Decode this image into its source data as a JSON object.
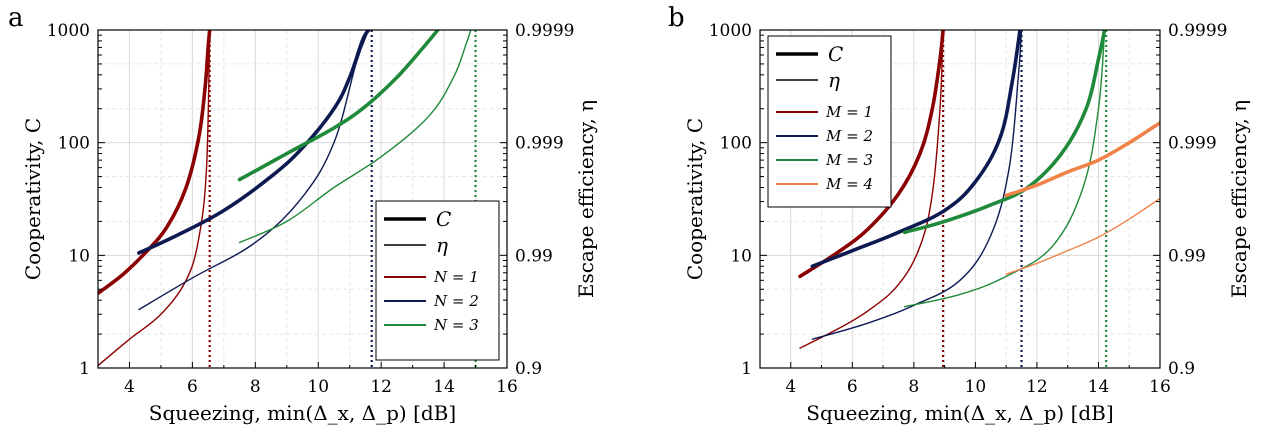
{
  "colors": {
    "red": "#8b0000",
    "navy": "#0d1a52",
    "green": "#1f8a3a",
    "orange": "#ef8348"
  },
  "chart_data": [
    {
      "type": "line",
      "panel_label": "a",
      "xlabel": "Squeezing, min(Δ_x, Δ_p) [dB]",
      "ylabel": "Cooperativity, C",
      "ylabel_right": "Escape efficiency, η",
      "xlim": [
        3,
        16
      ],
      "ylim": [
        1,
        1000
      ],
      "yscale": "log",
      "x_ticks": [
        "4",
        "6",
        "8",
        "10",
        "12",
        "14",
        "16"
      ],
      "y_ticks": [
        "1",
        "10",
        "100",
        "1000"
      ],
      "y_ticks_right": [
        "0.9",
        "0.99",
        "0.999",
        "0.9999"
      ],
      "grid": true,
      "legend_position": "lower-right",
      "legend": {
        "style_entries": [
          {
            "label": "C",
            "style": "thick"
          },
          {
            "label": "η",
            "style": "thin"
          }
        ],
        "color_entries": [
          {
            "label": "N = 1",
            "color": "red"
          },
          {
            "label": "N = 2",
            "color": "navy"
          },
          {
            "label": "N = 3",
            "color": "green"
          }
        ]
      },
      "series": [
        {
          "name": "C, N = 1",
          "color": "red",
          "style": "thick",
          "x": [
            3.0,
            3.8,
            4.5,
            5.2,
            5.8,
            6.2,
            6.4,
            6.5,
            6.55
          ],
          "y": [
            4.6,
            6.8,
            10.5,
            18,
            40,
            110,
            300,
            700,
            1000
          ]
        },
        {
          "name": "η, N = 1",
          "color": "red",
          "style": "thin",
          "x": [
            3.0,
            4.0,
            5.0,
            5.8,
            6.2,
            6.45,
            6.55
          ],
          "y": [
            1.05,
            1.8,
            3.0,
            6.0,
            14,
            60,
            1000
          ]
        },
        {
          "name": "C, N = 2",
          "color": "navy",
          "style": "thick",
          "x": [
            4.3,
            5.5,
            7.0,
            8.5,
            9.5,
            10.5,
            11.0,
            11.4,
            11.6
          ],
          "y": [
            10.5,
            15,
            25,
            50,
            90,
            200,
            380,
            800,
            1000
          ]
        },
        {
          "name": "η, N = 2",
          "color": "navy",
          "style": "thin",
          "x": [
            4.3,
            6.0,
            8.0,
            9.5,
            10.5,
            11.2,
            11.6
          ],
          "y": [
            3.3,
            6.3,
            13,
            33,
            100,
            500,
            1000
          ]
        },
        {
          "name": "C, N = 3",
          "color": "green",
          "style": "thick",
          "x": [
            7.5,
            9.0,
            10.5,
            11.5,
            12.5,
            13.3,
            13.8
          ],
          "y": [
            47,
            80,
            135,
            210,
            380,
            680,
            1000
          ]
        },
        {
          "name": "η, N = 3",
          "color": "green",
          "style": "thin",
          "x": [
            7.5,
            9.0,
            10.5,
            12.0,
            13.5,
            14.3,
            14.7,
            14.85
          ],
          "y": [
            13,
            20,
            40,
            75,
            170,
            380,
            750,
            1000
          ]
        }
      ],
      "vertical_lines": [
        {
          "x": 6.55,
          "color": "red"
        },
        {
          "x": 11.7,
          "color": "navy"
        },
        {
          "x": 15.0,
          "color": "green"
        }
      ]
    },
    {
      "type": "line",
      "panel_label": "b",
      "xlabel": "Squeezing, min(Δ_x, Δ_p) [dB]",
      "ylabel": "Cooperativity, C",
      "ylabel_right": "Escape efficiency, η",
      "xlim": [
        3,
        16
      ],
      "ylim": [
        1,
        1000
      ],
      "yscale": "log",
      "x_ticks": [
        "4",
        "6",
        "8",
        "10",
        "12",
        "14",
        "16"
      ],
      "y_ticks": [
        "1",
        "10",
        "100",
        "1000"
      ],
      "y_ticks_right": [
        "0.9",
        "0.99",
        "0.999",
        "0.9999"
      ],
      "grid": true,
      "legend_position": "upper-left",
      "legend": {
        "style_entries": [
          {
            "label": "C",
            "style": "thick"
          },
          {
            "label": "η",
            "style": "thin"
          }
        ],
        "color_entries": [
          {
            "label": "M = 1",
            "color": "red"
          },
          {
            "label": "M = 2",
            "color": "navy"
          },
          {
            "label": "M = 3",
            "color": "green"
          },
          {
            "label": "M = 4",
            "color": "orange"
          }
        ]
      },
      "series": [
        {
          "name": "C, M = 1",
          "color": "red",
          "style": "thick",
          "x": [
            4.3,
            5.5,
            6.5,
            7.5,
            8.2,
            8.6,
            8.85,
            8.95
          ],
          "y": [
            6.5,
            10.5,
            17,
            35,
            80,
            200,
            550,
            1000
          ]
        },
        {
          "name": "η, M = 1",
          "color": "red",
          "style": "thin",
          "x": [
            4.3,
            5.5,
            6.5,
            7.5,
            8.2,
            8.6,
            8.85,
            8.95
          ],
          "y": [
            1.5,
            2.2,
            3.2,
            5.5,
            12,
            35,
            200,
            1000
          ]
        },
        {
          "name": "C, M = 2",
          "color": "navy",
          "style": "thick",
          "x": [
            4.7,
            6.0,
            7.5,
            9.0,
            10.0,
            10.8,
            11.2,
            11.45
          ],
          "y": [
            8,
            11,
            16,
            25,
            45,
            110,
            350,
            1000
          ]
        },
        {
          "name": "η, M = 2",
          "color": "navy",
          "style": "thin",
          "x": [
            4.7,
            6.5,
            8.0,
            9.5,
            10.5,
            11.1,
            11.4,
            11.5
          ],
          "y": [
            1.8,
            2.5,
            3.6,
            6.0,
            15,
            60,
            400,
            1000
          ]
        },
        {
          "name": "C, M = 3",
          "color": "green",
          "style": "thick",
          "x": [
            7.7,
            9.0,
            10.5,
            11.7,
            12.8,
            13.6,
            14.0,
            14.2
          ],
          "y": [
            16,
            20,
            28,
            40,
            80,
            200,
            550,
            1000
          ]
        },
        {
          "name": "η, M = 3",
          "color": "green",
          "style": "thin",
          "x": [
            7.7,
            9.5,
            11.0,
            12.5,
            13.5,
            14.0,
            14.2
          ],
          "y": [
            3.5,
            4.5,
            6.5,
            12,
            40,
            200,
            1000
          ]
        },
        {
          "name": "C, M = 4",
          "color": "orange",
          "style": "thick",
          "x": [
            11.0,
            12.0,
            13.0,
            14.0,
            15.0,
            16.0
          ],
          "y": [
            34,
            42,
            55,
            70,
            100,
            150
          ]
        },
        {
          "name": "η, M = 4",
          "color": "orange",
          "style": "thin",
          "x": [
            11.0,
            12.0,
            13.0,
            14.0,
            15.0,
            16.0
          ],
          "y": [
            6.8,
            8.5,
            11,
            14.5,
            21,
            32
          ]
        }
      ],
      "vertical_lines": [
        {
          "x": 8.95,
          "color": "red"
        },
        {
          "x": 11.5,
          "color": "navy"
        },
        {
          "x": 14.25,
          "color": "green"
        }
      ]
    }
  ]
}
